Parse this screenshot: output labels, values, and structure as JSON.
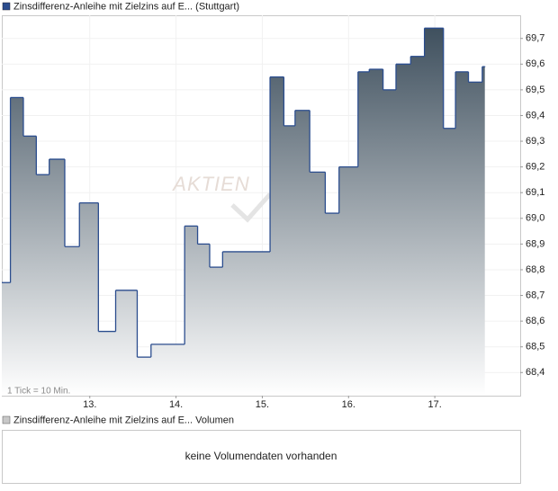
{
  "chart_data": {
    "type": "line",
    "step": true,
    "legend": "Zinsdifferenz-Anleihe mit Zielzins auf E... (Stuttgart)",
    "color": "#2b4d8e",
    "fill_top": "#3f505e",
    "fill_bottom": "#ffffff",
    "note": "1 Tick = 10 Min.",
    "watermark": "AKTIEN",
    "grid": true,
    "x": [
      11.98,
      12.08,
      12.23,
      12.38,
      12.53,
      12.71,
      12.88,
      13.1,
      13.3,
      13.55,
      13.71,
      14.1,
      14.25,
      14.39,
      14.54,
      15.09,
      15.25,
      15.38,
      15.55,
      15.73,
      15.89,
      16.11,
      16.24,
      16.4,
      16.55,
      16.72,
      16.88,
      17.1,
      17.24,
      17.39,
      17.55,
      17.58
    ],
    "values": [
      68.75,
      69.47,
      69.32,
      69.17,
      69.23,
      68.89,
      69.06,
      68.56,
      68.72,
      68.46,
      68.51,
      68.97,
      68.9,
      68.81,
      68.87,
      69.55,
      69.36,
      69.42,
      69.18,
      69.02,
      69.2,
      69.57,
      69.58,
      69.5,
      69.6,
      69.63,
      69.74,
      69.35,
      69.57,
      69.53,
      69.59,
      69.59
    ],
    "xlim": [
      11.98,
      17.99
    ],
    "xticks": [
      {
        "value": 13,
        "label": "13."
      },
      {
        "value": 14,
        "label": "14."
      },
      {
        "value": 15,
        "label": "15."
      },
      {
        "value": 16,
        "label": "16."
      },
      {
        "value": 17,
        "label": "17."
      }
    ],
    "ylim": [
      68.31,
      69.79
    ],
    "yticks": [
      {
        "value": 68.4,
        "label": "68,4"
      },
      {
        "value": 68.5,
        "label": "68,5"
      },
      {
        "value": 68.6,
        "label": "68,6"
      },
      {
        "value": 68.7,
        "label": "68,7"
      },
      {
        "value": 68.8,
        "label": "68,8"
      },
      {
        "value": 68.9,
        "label": "68,9"
      },
      {
        "value": 69.0,
        "label": "69,0"
      },
      {
        "value": 69.1,
        "label": "69,1"
      },
      {
        "value": 69.2,
        "label": "69,2"
      },
      {
        "value": 69.3,
        "label": "69,3"
      },
      {
        "value": 69.4,
        "label": "69,4"
      },
      {
        "value": 69.5,
        "label": "69,5"
      },
      {
        "value": 69.6,
        "label": "69,6"
      },
      {
        "value": 69.7,
        "label": "69,7"
      }
    ]
  },
  "volume_panel": {
    "legend": "Zinsdifferenz-Anleihe mit Zielzins auf E... Volumen",
    "message": "keine Volumendaten vorhanden"
  }
}
